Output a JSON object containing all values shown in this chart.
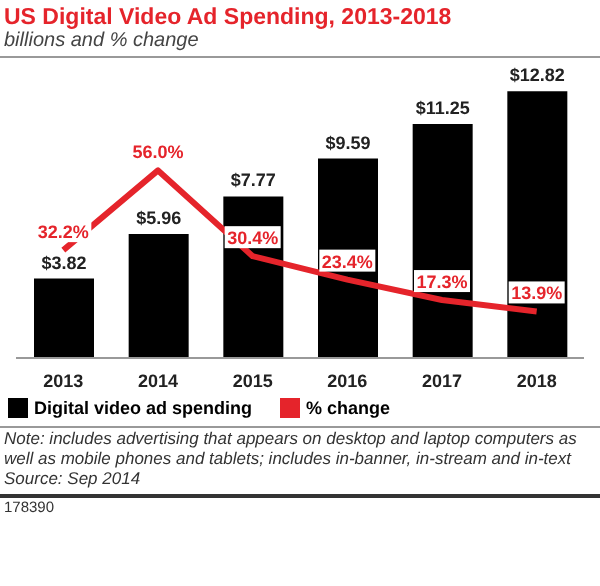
{
  "chart_data": {
    "type": "bar",
    "title": "US Digital Video Ad Spending, 2013-2018",
    "subtitle": "billions and % change",
    "categories": [
      "2013",
      "2014",
      "2015",
      "2016",
      "2017",
      "2018"
    ],
    "series": [
      {
        "name": "Digital video ad spending",
        "color": "#000000",
        "values": [
          3.82,
          5.96,
          7.77,
          9.59,
          11.25,
          12.82
        ],
        "value_labels": [
          "$3.82",
          "$5.96",
          "$7.77",
          "$9.59",
          "$11.25",
          "$12.82"
        ]
      },
      {
        "name": "% change",
        "type": "line",
        "axis": "y2",
        "color": "#e5242b",
        "values": [
          32.2,
          56.0,
          30.4,
          23.4,
          17.3,
          13.9
        ],
        "value_labels": [
          "32.2%",
          "56.0%",
          "30.4%",
          "23.4%",
          "17.3%",
          "13.9%"
        ]
      }
    ],
    "legend": "bottom",
    "marker": "none",
    "line_style": "solid",
    "annotations": [
      "Note: includes advertising that appears on desktop and laptop computers as well as mobile phones and tablets; includes in-banner, in-stream and in-text",
      "Source: Sep 2014",
      "178390"
    ]
  }
}
